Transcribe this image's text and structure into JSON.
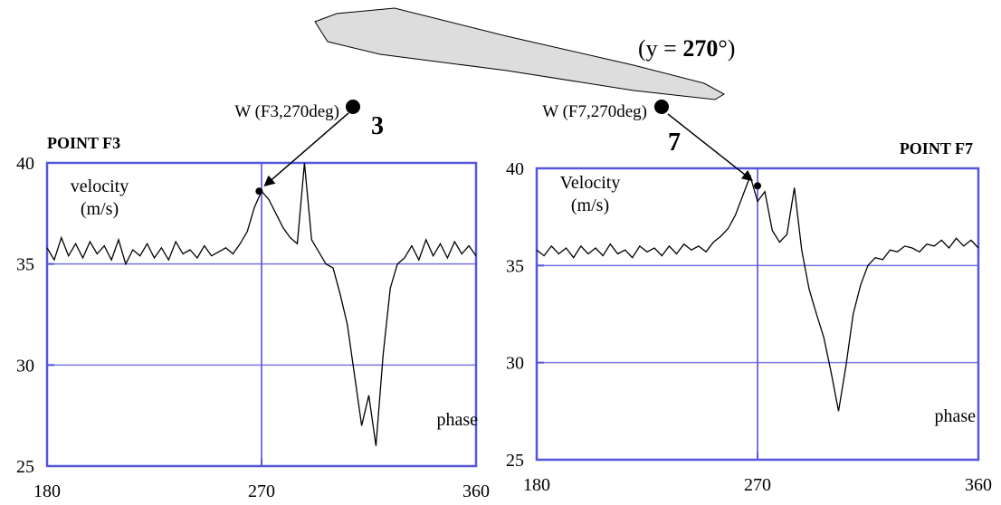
{
  "figure_label": [
    "(y = ",
    "270",
    "°)"
  ],
  "chart_data": [
    {
      "type": "line",
      "title": "POINT F3",
      "ylabel": [
        "velocity",
        "(m/s)"
      ],
      "xlabel": "phase",
      "annotation": {
        "text": "W (F3,270deg)",
        "number": "3"
      },
      "marker": {
        "x": 269,
        "y": 38.6
      },
      "xlim": [
        180,
        360
      ],
      "ylim": [
        25,
        40
      ],
      "xticks": [
        180,
        270,
        360
      ],
      "yticks": [
        25,
        30,
        35,
        40
      ],
      "grid": true,
      "color": "#000000",
      "frame_color": "#5555dd",
      "x": [
        180,
        183,
        186,
        189,
        192,
        195,
        198,
        201,
        204,
        207,
        210,
        213,
        216,
        219,
        222,
        225,
        228,
        231,
        234,
        237,
        240,
        243,
        246,
        249,
        252,
        255,
        258,
        261,
        264,
        267,
        270,
        273,
        276,
        279,
        282,
        285,
        288,
        291,
        294,
        297,
        300,
        303,
        306,
        309,
        312,
        315,
        318,
        321,
        324,
        327,
        330,
        333,
        336,
        339,
        342,
        345,
        348,
        351,
        354,
        357,
        360
      ],
      "values": [
        35.8,
        35.2,
        36.3,
        35.4,
        36.0,
        35.3,
        36.1,
        35.5,
        35.9,
        35.2,
        36.2,
        35.0,
        35.7,
        35.4,
        36.0,
        35.3,
        35.8,
        35.2,
        36.1,
        35.5,
        35.7,
        35.3,
        35.9,
        35.4,
        35.6,
        35.8,
        35.5,
        36.0,
        36.6,
        37.8,
        38.6,
        38.2,
        37.5,
        36.8,
        36.3,
        36.0,
        40.0,
        36.2,
        35.6,
        35.0,
        34.8,
        33.5,
        32.0,
        29.5,
        27.0,
        28.5,
        26.0,
        30.5,
        33.8,
        35.0,
        35.3,
        35.9,
        35.2,
        36.2,
        35.4,
        36.0,
        35.3,
        36.1,
        35.5,
        35.9,
        35.4
      ]
    },
    {
      "type": "line",
      "title": "POINT F7",
      "ylabel": [
        "Velocity",
        "(m/s)"
      ],
      "xlabel": "phase",
      "annotation": {
        "text": "W (F7,270deg)",
        "number": "7"
      },
      "marker": {
        "x": 270,
        "y": 39.1
      },
      "xlim": [
        180,
        360
      ],
      "ylim": [
        25,
        40
      ],
      "xticks": [
        180,
        270,
        360
      ],
      "yticks": [
        25,
        30,
        35,
        40
      ],
      "grid": true,
      "color": "#000000",
      "frame_color": "#5555dd",
      "x": [
        180,
        183,
        186,
        189,
        192,
        195,
        198,
        201,
        204,
        207,
        210,
        213,
        216,
        219,
        222,
        225,
        228,
        231,
        234,
        237,
        240,
        243,
        246,
        249,
        252,
        255,
        258,
        261,
        264,
        267,
        270,
        273,
        276,
        279,
        282,
        285,
        288,
        291,
        294,
        297,
        300,
        303,
        306,
        309,
        312,
        315,
        318,
        321,
        324,
        327,
        330,
        333,
        336,
        339,
        342,
        345,
        348,
        351,
        354,
        357,
        360
      ],
      "values": [
        35.8,
        35.5,
        36.0,
        35.6,
        35.9,
        35.4,
        36.0,
        35.6,
        35.9,
        35.5,
        36.1,
        35.6,
        35.8,
        35.4,
        36.0,
        35.7,
        35.9,
        35.5,
        36.0,
        35.6,
        36.1,
        35.8,
        36.0,
        35.7,
        36.2,
        36.5,
        36.9,
        37.6,
        38.6,
        39.6,
        38.3,
        38.8,
        36.8,
        36.2,
        36.6,
        39.0,
        35.8,
        33.8,
        32.5,
        31.3,
        29.5,
        27.5,
        29.8,
        32.5,
        34.0,
        35.0,
        35.4,
        35.3,
        35.8,
        35.7,
        36.0,
        35.9,
        35.7,
        36.1,
        36.0,
        36.3,
        35.9,
        36.4,
        36.0,
        36.3,
        35.9
      ]
    }
  ]
}
